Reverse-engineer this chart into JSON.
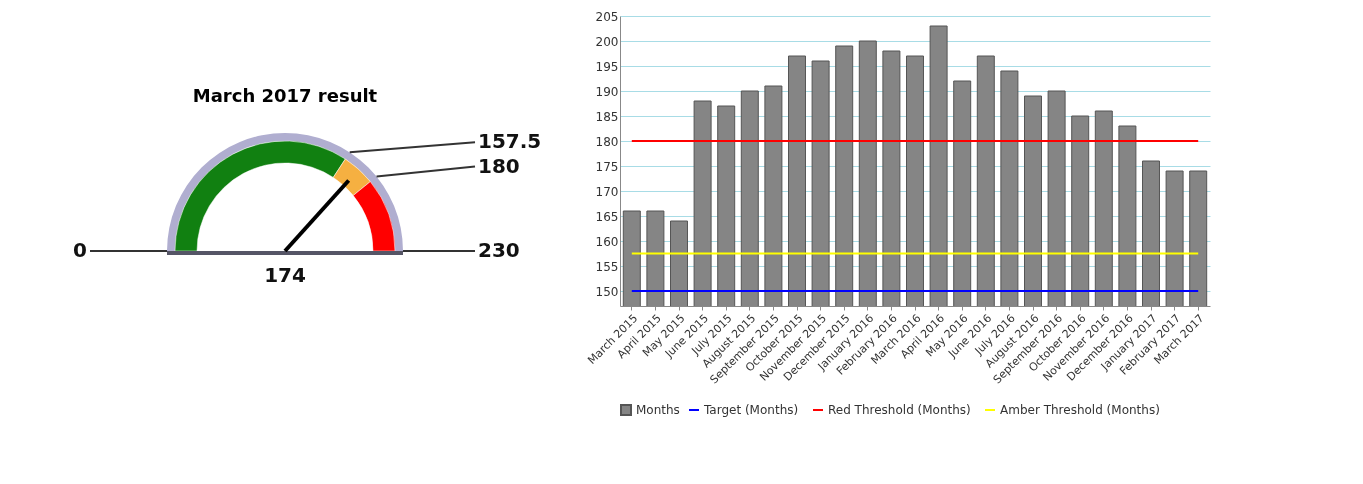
{
  "chart_data": [
    {
      "type": "donut",
      "title": "March 2017 result",
      "categories": [
        "157.5",
        "180",
        "230"
      ],
      "values": [
        68.478,
        9.783,
        21.739
      ],
      "colors": [
        "#118011",
        "#f5b041",
        "#ff0000"
      ],
      "needle": "180",
      "annotations": [
        "0",
        "174"
      ]
    },
    {
      "type": "bar",
      "categories": [
        "March 2015",
        "April 2015",
        "May 2015",
        "June 2015",
        "July 2015",
        "August 2015",
        "September 2015",
        "October 2015",
        "November 2015",
        "December 2015",
        "January 2016",
        "February 2016",
        "March 2016",
        "April 2016",
        "May 2016",
        "June 2016",
        "July 2016",
        "August 2016",
        "September 2016",
        "October 2016",
        "November 2016",
        "December 2016",
        "January 2017",
        "February 2017",
        "March 2017"
      ],
      "series": [
        {
          "name": "Months",
          "color": "#858585",
          "values": [
            166,
            166,
            164,
            188,
            187,
            190,
            191,
            197,
            196,
            199,
            200,
            198,
            197,
            203,
            192,
            197,
            194,
            189,
            190,
            185,
            186,
            183,
            176,
            174,
            174
          ]
        },
        {
          "name": "Target (Months)",
          "type": "line",
          "color": "#0000ff",
          "values": [
            150,
            150,
            150,
            150,
            150,
            150,
            150,
            150,
            150,
            150,
            150,
            150,
            150,
            150,
            150,
            150,
            150,
            150,
            150,
            150,
            150,
            150,
            150,
            150,
            150
          ]
        },
        {
          "name": "Red Threshold (Months)",
          "type": "line",
          "color": "#ff0000",
          "values": [
            180,
            180,
            180,
            180,
            180,
            180,
            180,
            180,
            180,
            180,
            180,
            180,
            180,
            180,
            180,
            180,
            180,
            180,
            180,
            180,
            180,
            180,
            180,
            180,
            180
          ]
        },
        {
          "name": "Amber Threshold (Months)",
          "type": "line",
          "color": "#ffff00",
          "values": [
            157.5,
            157.5,
            157.5,
            157.5,
            157.5,
            157.5,
            157.5,
            157.5,
            157.5,
            157.5,
            157.5,
            157.5,
            157.5,
            157.5,
            157.5,
            157.5,
            157.5,
            157.5,
            157.5,
            157.5,
            157.5,
            157.5,
            157.5,
            157.5,
            157.5
          ]
        }
      ],
      "ylim": [
        147,
        205
      ],
      "yticks": [
        150,
        155,
        160,
        165,
        170,
        175,
        180,
        185,
        190,
        195,
        200,
        205
      ],
      "grid": "y",
      "legend": "bottom"
    }
  ]
}
